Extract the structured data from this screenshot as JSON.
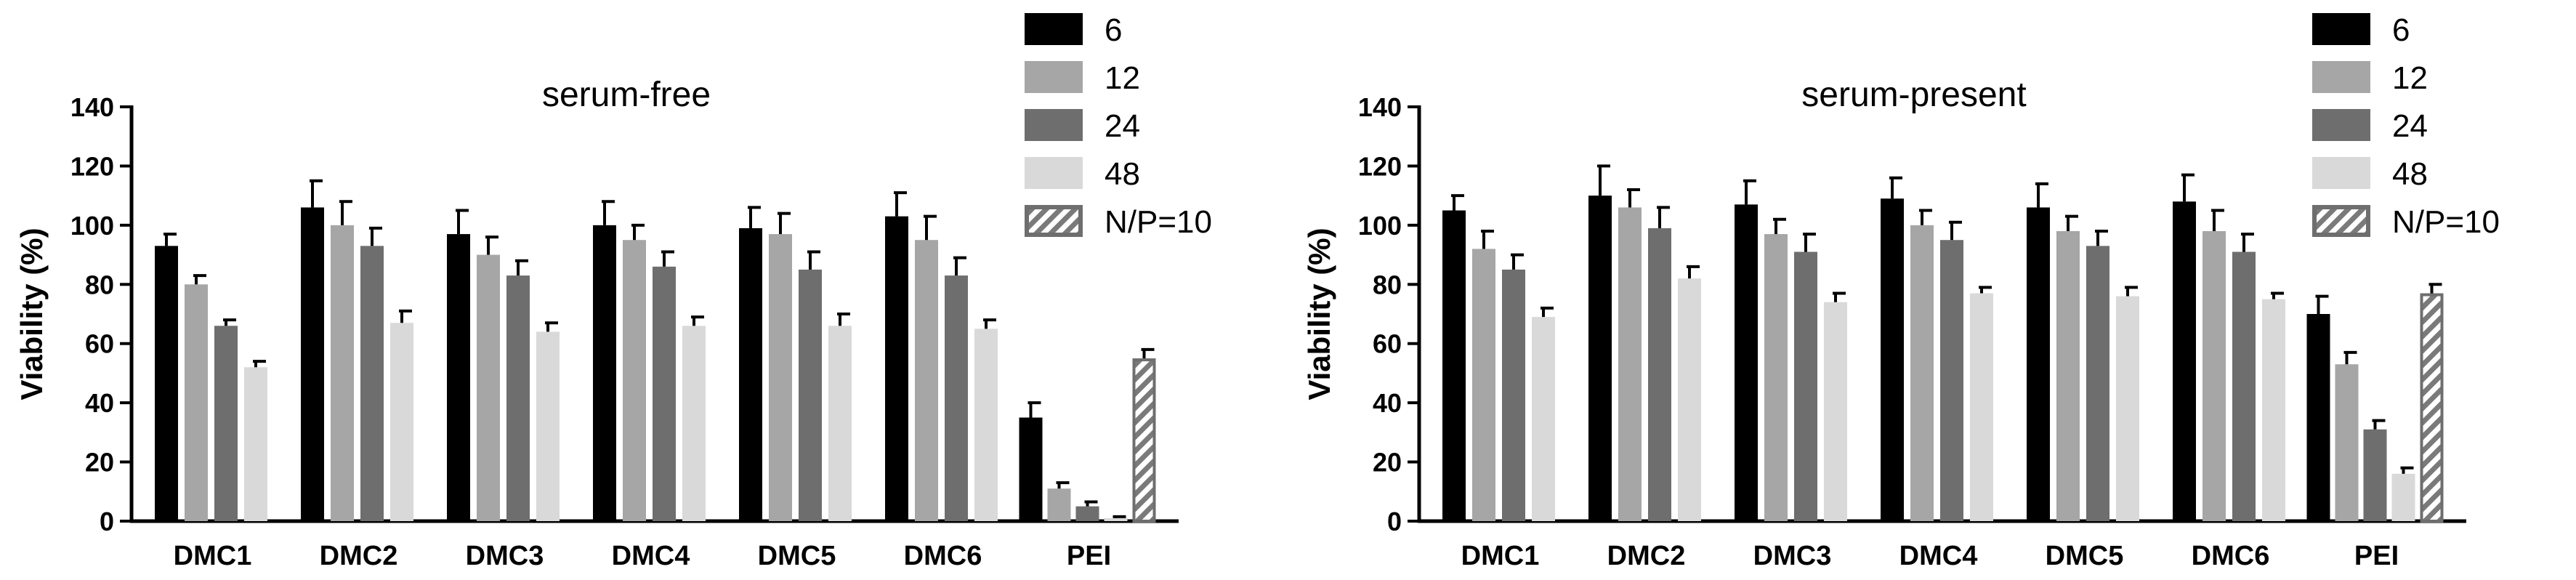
{
  "colors": {
    "6": "#000000",
    "12": "#a6a6a6",
    "24": "#6e6e6e",
    "48": "#d9d9d9",
    "N/P=10": "#7a7a7a"
  },
  "chart_data": [
    {
      "type": "bar",
      "title": "serum-free",
      "xlabel": "",
      "ylabel": "Viability (%)",
      "ylim": [
        0,
        140
      ],
      "yticks": [
        "0",
        "20",
        "40",
        "60",
        "80",
        "100",
        "120",
        "140"
      ],
      "categories": [
        "DMC1",
        "DMC2",
        "DMC3",
        "DMC4",
        "DMC5",
        "DMC6",
        "PEI"
      ],
      "legend": [
        "6",
        "12",
        "24",
        "48",
        "N/P=10"
      ],
      "legend_position": "top-right",
      "grid": false,
      "series": [
        {
          "name": "6",
          "values": [
            93,
            106,
            97,
            100,
            99,
            103,
            35
          ],
          "errors": [
            4,
            9,
            8,
            8,
            7,
            8,
            5
          ]
        },
        {
          "name": "12",
          "values": [
            80,
            100,
            90,
            95,
            97,
            95,
            11
          ],
          "errors": [
            3,
            8,
            6,
            5,
            7,
            8,
            2
          ]
        },
        {
          "name": "24",
          "values": [
            66,
            93,
            83,
            86,
            85,
            83,
            5
          ],
          "errors": [
            2,
            6,
            5,
            5,
            6,
            6,
            1.5
          ]
        },
        {
          "name": "48",
          "values": [
            52,
            67,
            64,
            66,
            66,
            65,
            1
          ],
          "errors": [
            2,
            4,
            3,
            3,
            4,
            3,
            0.5
          ]
        },
        {
          "name": "N/P=10",
          "values": [
            null,
            null,
            null,
            null,
            null,
            null,
            55
          ],
          "errors": [
            null,
            null,
            null,
            null,
            null,
            null,
            3
          ]
        }
      ]
    },
    {
      "type": "bar",
      "title": "serum-present",
      "xlabel": "",
      "ylabel": "Viability (%)",
      "ylim": [
        0,
        140
      ],
      "yticks": [
        "0",
        "20",
        "40",
        "60",
        "80",
        "100",
        "120",
        "140"
      ],
      "categories": [
        "DMC1",
        "DMC2",
        "DMC3",
        "DMC4",
        "DMC5",
        "DMC6",
        "PEI"
      ],
      "legend": [
        "6",
        "12",
        "24",
        "48",
        "N/P=10"
      ],
      "legend_position": "top-right",
      "grid": false,
      "series": [
        {
          "name": "6",
          "values": [
            105,
            110,
            107,
            109,
            106,
            108,
            70
          ],
          "errors": [
            5,
            10,
            8,
            7,
            8,
            9,
            6
          ]
        },
        {
          "name": "12",
          "values": [
            92,
            106,
            97,
            100,
            98,
            98,
            53
          ],
          "errors": [
            6,
            6,
            5,
            5,
            5,
            7,
            4
          ]
        },
        {
          "name": "24",
          "values": [
            85,
            99,
            91,
            95,
            93,
            91,
            31
          ],
          "errors": [
            5,
            7,
            6,
            6,
            5,
            6,
            3
          ]
        },
        {
          "name": "48",
          "values": [
            69,
            82,
            74,
            77,
            76,
            75,
            16
          ],
          "errors": [
            3,
            4,
            3,
            2,
            3,
            2,
            2
          ]
        },
        {
          "name": "N/P=10",
          "values": [
            null,
            null,
            null,
            null,
            null,
            null,
            77
          ],
          "errors": [
            null,
            null,
            null,
            null,
            null,
            null,
            3
          ]
        }
      ]
    }
  ]
}
